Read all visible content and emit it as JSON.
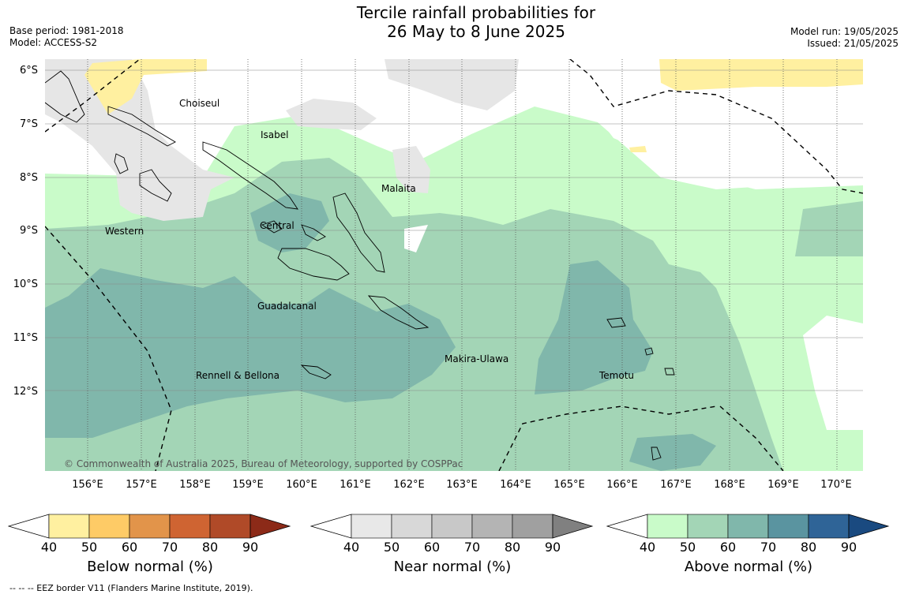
{
  "title_line1": "Tercile rainfall probabilities for",
  "title_line2": "26 May to 8 June 2025",
  "base_period": "Base period: 1981-2018",
  "model": "Model: ACCESS-S2",
  "model_run": "Model run: 19/05/2025",
  "issued": "Issued: 21/05/2025",
  "lat_labels": [
    "6°S",
    "7°S",
    "8°S",
    "9°S",
    "10°S",
    "11°S",
    "12°S"
  ],
  "lon_labels": [
    "156°E",
    "157°E",
    "158°E",
    "159°E",
    "160°E",
    "161°E",
    "162°E",
    "163°E",
    "164°E",
    "165°E",
    "166°E",
    "167°E",
    "168°E",
    "169°E",
    "170°E"
  ],
  "regions": {
    "choiseul": "Choiseul",
    "isabel": "Isabel",
    "malaita": "Malaita",
    "central": "Central",
    "western": "Western",
    "guadalcanal": "Guadalcanal",
    "makira": "Makira-Ulawa",
    "rennell": "Rennell & Bellona",
    "temotu": "Temotu"
  },
  "copyright": "© Commonwealth of Australia 2025, Bureau of Meteorology, supported by COSPPac",
  "colorbars": [
    {
      "name": "Below normal (%)",
      "ticks": [
        "40",
        "50",
        "60",
        "70",
        "80",
        "90"
      ],
      "colors": [
        "#fff0a0",
        "#fecb66",
        "#e2944a",
        "#cf6432",
        "#b04a28",
        "#8c2a18"
      ]
    },
    {
      "name": "Near normal (%)",
      "ticks": [
        "40",
        "50",
        "60",
        "70",
        "80",
        "90"
      ],
      "colors": [
        "#e8e8e8",
        "#d8d8d8",
        "#c8c8c8",
        "#b4b4b4",
        "#a0a0a0",
        "#808080"
      ]
    },
    {
      "name": "Above normal (%)",
      "ticks": [
        "40",
        "50",
        "60",
        "70",
        "80",
        "90"
      ],
      "colors": [
        "#c9fbc9",
        "#a3d5b6",
        "#80b7ab",
        "#5a94a0",
        "#2f6497",
        "#1a4a80"
      ]
    }
  ],
  "eez_note": "--  --  -- EEZ border V11 (Flanders Marine Institute, 2019)."
}
